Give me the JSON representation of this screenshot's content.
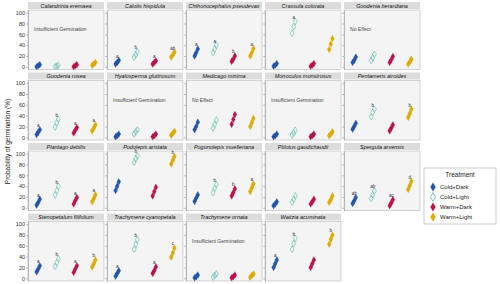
{
  "chart_data": {
    "type": "scatter",
    "y_label": "Probability of germination (%)",
    "legend_title": "Treatment",
    "ylim": [
      -5,
      105
    ],
    "yticks": [
      0,
      20,
      40,
      60,
      80,
      100
    ],
    "grid": false,
    "legend": "right",
    "tick_labels": "y",
    "series": [
      {
        "name": "Cold+Dark",
        "color": "#2255aa",
        "marker": "diamond"
      },
      {
        "name": "Cold+Light",
        "color": "#55bbaa",
        "marker": "open-diamond"
      },
      {
        "name": "Warm+Dark",
        "color": "#bb1144",
        "marker": "diamond"
      },
      {
        "name": "Warm+Light",
        "color": "#ddaa00",
        "marker": "diamond"
      }
    ],
    "panels": [
      {
        "title": "Calandrinia eremaea",
        "values": [
          [
            0,
            2,
            4
          ],
          [
            0,
            1,
            3
          ],
          [
            0,
            2,
            4
          ],
          [
            3,
            5,
            8
          ]
        ],
        "annotations": [
          {
            "text": "Insufficient Germination"
          }
        ]
      },
      {
        "title": "Calotis hispidula",
        "values": [
          [
            5,
            8,
            12
          ],
          [
            18,
            22,
            28
          ],
          [
            5,
            8,
            11
          ],
          [
            18,
            22,
            27
          ]
        ],
        "annotations": [
          {
            "text": "a",
            "series": "Cold+Dark"
          },
          {
            "text": "b",
            "series": "Cold+Light"
          },
          {
            "text": "a",
            "series": "Warm+Dark"
          },
          {
            "text": "ab",
            "series": "Warm+Light"
          }
        ]
      },
      {
        "title": "Chthonocephalus pseudevax",
        "values": [
          [
            20,
            26,
            33
          ],
          [
            26,
            33,
            40
          ],
          [
            10,
            14,
            20
          ],
          [
            20,
            26,
            34
          ]
        ],
        "annotations": [
          {
            "text": "a",
            "series": "Cold+Dark"
          },
          {
            "text": "a",
            "series": "Cold+Light"
          },
          {
            "text": "b",
            "series": "Warm+Dark"
          },
          {
            "text": "a",
            "series": "Warm+Light"
          }
        ]
      },
      {
        "title": "Crassula colorata",
        "values": [
          [
            1,
            3,
            6
          ],
          [
            62,
            74,
            84
          ],
          [
            1,
            3,
            6
          ],
          [
            32,
            42,
            52
          ]
        ],
        "annotations": [
          {
            "text": "a",
            "series": "Cold+Light"
          }
        ]
      },
      {
        "title": "Goodenia berardiana",
        "values": [
          [
            8,
            12,
            18
          ],
          [
            12,
            17,
            23
          ],
          [
            8,
            13,
            19
          ],
          [
            5,
            9,
            14
          ]
        ],
        "annotations": [
          {
            "text": "No Effect"
          }
        ]
      },
      {
        "title": "Goodenia rosea",
        "values": [
          [
            5,
            9,
            14
          ],
          [
            19,
            27,
            33
          ],
          [
            8,
            13,
            18
          ],
          [
            12,
            17,
            23
          ]
        ],
        "annotations": [
          {
            "text": "a",
            "series": "Cold+Dark"
          },
          {
            "text": "b",
            "series": "Cold+Light"
          },
          {
            "text": "a",
            "series": "Warm+Dark"
          },
          {
            "text": "a",
            "series": "Warm+Light"
          }
        ]
      },
      {
        "title": "Hyalosperma glutinosum",
        "values": [
          [
            1,
            3,
            6
          ],
          [
            6,
            10,
            14
          ],
          [
            1,
            3,
            6
          ],
          [
            4,
            7,
            11
          ]
        ],
        "annotations": [
          {
            "text": "Insufficient Germination"
          }
        ]
      },
      {
        "title": "Medicago minima",
        "values": [
          [
            14,
            20,
            28
          ],
          [
            17,
            24,
            32
          ],
          [
            24,
            33,
            42
          ],
          [
            20,
            27,
            35
          ]
        ],
        "annotations": [
          {
            "text": "No Effect"
          }
        ]
      },
      {
        "title": "Monoculus monstrosus",
        "values": [
          [
            1,
            3,
            6
          ],
          [
            4,
            8,
            13
          ],
          [
            1,
            3,
            6
          ],
          [
            3,
            6,
            10
          ]
        ],
        "annotations": [
          {
            "text": "Insufficient Germination"
          }
        ]
      },
      {
        "title": "Pentameris airoides",
        "values": [
          [
            15,
            20,
            26
          ],
          [
            38,
            46,
            52
          ],
          [
            12,
            17,
            23
          ],
          [
            37,
            44,
            52
          ]
        ],
        "annotations": [
          {
            "text": "b",
            "series": "Cold+Light"
          },
          {
            "text": "b",
            "series": "Warm+Light"
          }
        ]
      },
      {
        "title": "Plantago debilis",
        "values": [
          [
            5,
            10,
            16
          ],
          [
            24,
            32,
            40
          ],
          [
            7,
            13,
            19
          ],
          [
            11,
            17,
            24
          ]
        ],
        "annotations": [
          {
            "text": "a",
            "series": "Cold+Dark"
          },
          {
            "text": "b",
            "series": "Cold+Light"
          },
          {
            "text": "a",
            "series": "Warm+Dark"
          },
          {
            "text": "a",
            "series": "Warm+Light"
          }
        ]
      },
      {
        "title": "Podolepis aristata",
        "values": [
          [
            32,
            40,
            48
          ],
          [
            84,
            91,
            96
          ],
          [
            22,
            30,
            38
          ],
          [
            81,
            88,
            95
          ]
        ],
        "annotations": [
          {
            "text": "b",
            "series": "Cold+Light"
          },
          {
            "text": "b",
            "series": "Warm+Light"
          }
        ]
      },
      {
        "title": "Pogonolepis muelleriana",
        "values": [
          [
            12,
            18,
            24
          ],
          [
            28,
            36,
            43
          ],
          [
            22,
            28,
            35
          ],
          [
            30,
            37,
            44
          ]
        ],
        "annotations": [
          {
            "text": "b",
            "series": "Cold+Light"
          },
          {
            "text": "b",
            "series": "Warm+Dark"
          },
          {
            "text": "a",
            "series": "Warm+Light"
          }
        ]
      },
      {
        "title": "Ptilotus gaudichaudii",
        "values": [
          [
            4,
            7,
            11
          ],
          [
            10,
            16,
            22
          ],
          [
            7,
            11,
            16
          ],
          [
            10,
            15,
            22
          ]
        ]
      },
      {
        "title": "Spergula arvensis",
        "values": [
          [
            8,
            13,
            19
          ],
          [
            17,
            24,
            31
          ],
          [
            4,
            9,
            15
          ],
          [
            34,
            41,
            49
          ]
        ],
        "annotations": [
          {
            "text": "ab",
            "series": "Cold+Dark"
          },
          {
            "text": "ab",
            "series": "Cold+Light"
          },
          {
            "text": "ac",
            "series": "Warm+Dark"
          },
          {
            "text": "d",
            "series": "Warm+Light"
          }
        ]
      },
      {
        "title": "Stenopetalum filifolium",
        "values": [
          [
            12,
            17,
            23
          ],
          [
            22,
            29,
            36
          ],
          [
            11,
            17,
            23
          ],
          [
            21,
            27,
            34
          ]
        ],
        "annotations": [
          {
            "text": "a",
            "series": "Cold+Dark"
          },
          {
            "text": "b",
            "series": "Cold+Light"
          },
          {
            "text": "a",
            "series": "Warm+Dark"
          },
          {
            "text": "b",
            "series": "Warm+Light"
          }
        ]
      },
      {
        "title": "Trachymene cyanopetala",
        "values": [
          [
            4,
            9,
            14
          ],
          [
            54,
            63,
            71
          ],
          [
            9,
            14,
            21
          ],
          [
            39,
            47,
            56
          ]
        ],
        "annotations": [
          {
            "text": "a",
            "series": "Cold+Dark"
          },
          {
            "text": "b",
            "series": "Cold+Light"
          },
          {
            "text": "a",
            "series": "Warm+Dark"
          },
          {
            "text": "c",
            "series": "Warm+Light"
          }
        ]
      },
      {
        "title": "Trachymene ornata",
        "values": [
          [
            1,
            3,
            6
          ],
          [
            2,
            5,
            8
          ],
          [
            1,
            3,
            6
          ],
          [
            2,
            5,
            8
          ]
        ],
        "annotations": [
          {
            "text": "Insufficient Germination"
          }
        ]
      },
      {
        "title": "Waitzia acuminata",
        "values": [
          [
            20,
            27,
            34
          ],
          [
            54,
            64,
            74
          ],
          [
            20,
            27,
            34
          ],
          [
            63,
            72,
            80
          ]
        ],
        "annotations": [
          {
            "text": "a",
            "series": "Cold+Dark"
          },
          {
            "text": "b",
            "series": "Cold+Light"
          },
          {
            "text": "b",
            "series": "Warm+Light"
          }
        ]
      }
    ]
  }
}
